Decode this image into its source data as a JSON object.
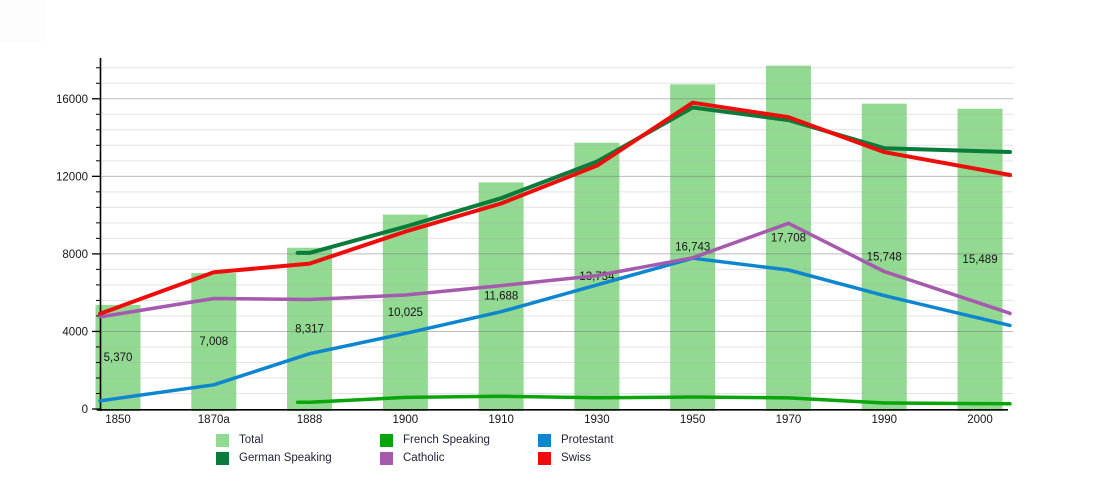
{
  "chart_data": {
    "type": "combo-bar-line",
    "title": "",
    "xlabel": "",
    "ylabel": "",
    "categories": [
      "1850",
      "1870a",
      "1888",
      "1900",
      "1910",
      "1930",
      "1950",
      "1970",
      "1990",
      "2000"
    ],
    "bar_series": {
      "name": "Total",
      "color": "#92D992",
      "values": [
        5370,
        7008,
        8317,
        10025,
        11688,
        13734,
        16743,
        17708,
        15748,
        15489
      ],
      "labels": [
        "5,370",
        "7,008",
        "8,317",
        "10,025",
        "11,688",
        "13,734",
        "16,743",
        "17,708",
        "15,748",
        "15,489"
      ]
    },
    "line_series": [
      {
        "name": "German Speaking",
        "color": "#0B7B3B",
        "width": 4,
        "values": [
          null,
          null,
          8050,
          9400,
          10870,
          12760,
          15550,
          14900,
          13450,
          13300
        ]
      },
      {
        "name": "French Speaking",
        "color": "#0AA50A",
        "width": 3.5,
        "values": [
          null,
          null,
          350,
          600,
          660,
          580,
          620,
          570,
          310,
          280
        ]
      },
      {
        "name": "Protestant",
        "color": "#0E86CF",
        "width": 3.5,
        "values": [
          550,
          1250,
          2850,
          3900,
          5020,
          6400,
          7780,
          7170,
          5850,
          4680
        ]
      },
      {
        "name": "Catholic",
        "color": "#A55AAD",
        "width": 3.5,
        "values": [
          4900,
          5700,
          5650,
          5880,
          6365,
          6880,
          7800,
          9580,
          7090,
          5450
        ]
      },
      {
        "name": "Swiss",
        "color": "#EE0D0D",
        "width": 4,
        "values": [
          5250,
          7050,
          7500,
          9150,
          10600,
          12550,
          15800,
          15050,
          13250,
          12350
        ]
      }
    ],
    "y_axis": {
      "tick_values": [
        0,
        4000,
        8000,
        12000,
        16000
      ],
      "tick_labels": [
        "0",
        "4000",
        "8000",
        "12000",
        "16000"
      ],
      "max": 18000,
      "minor_step": 800
    },
    "grid": true,
    "legend_position": "bottom"
  },
  "legend": {
    "items": [
      {
        "label": "Total",
        "color": "#92D992"
      },
      {
        "label": "German Speaking",
        "color": "#0B7B3B"
      },
      {
        "label": "French Speaking",
        "color": "#0AA50A"
      },
      {
        "label": "Catholic",
        "color": "#A55AAD"
      },
      {
        "label": "Protestant",
        "color": "#0E86CF"
      },
      {
        "label": "Swiss",
        "color": "#EE0D0D"
      }
    ]
  },
  "colors": {
    "axis": "#000000",
    "minor_grid": "rgba(175,175,175,0.35)",
    "major_grid": "rgba(120,120,120,0.50)",
    "tick_text": "#161616",
    "bar_label_text": "#161616"
  }
}
